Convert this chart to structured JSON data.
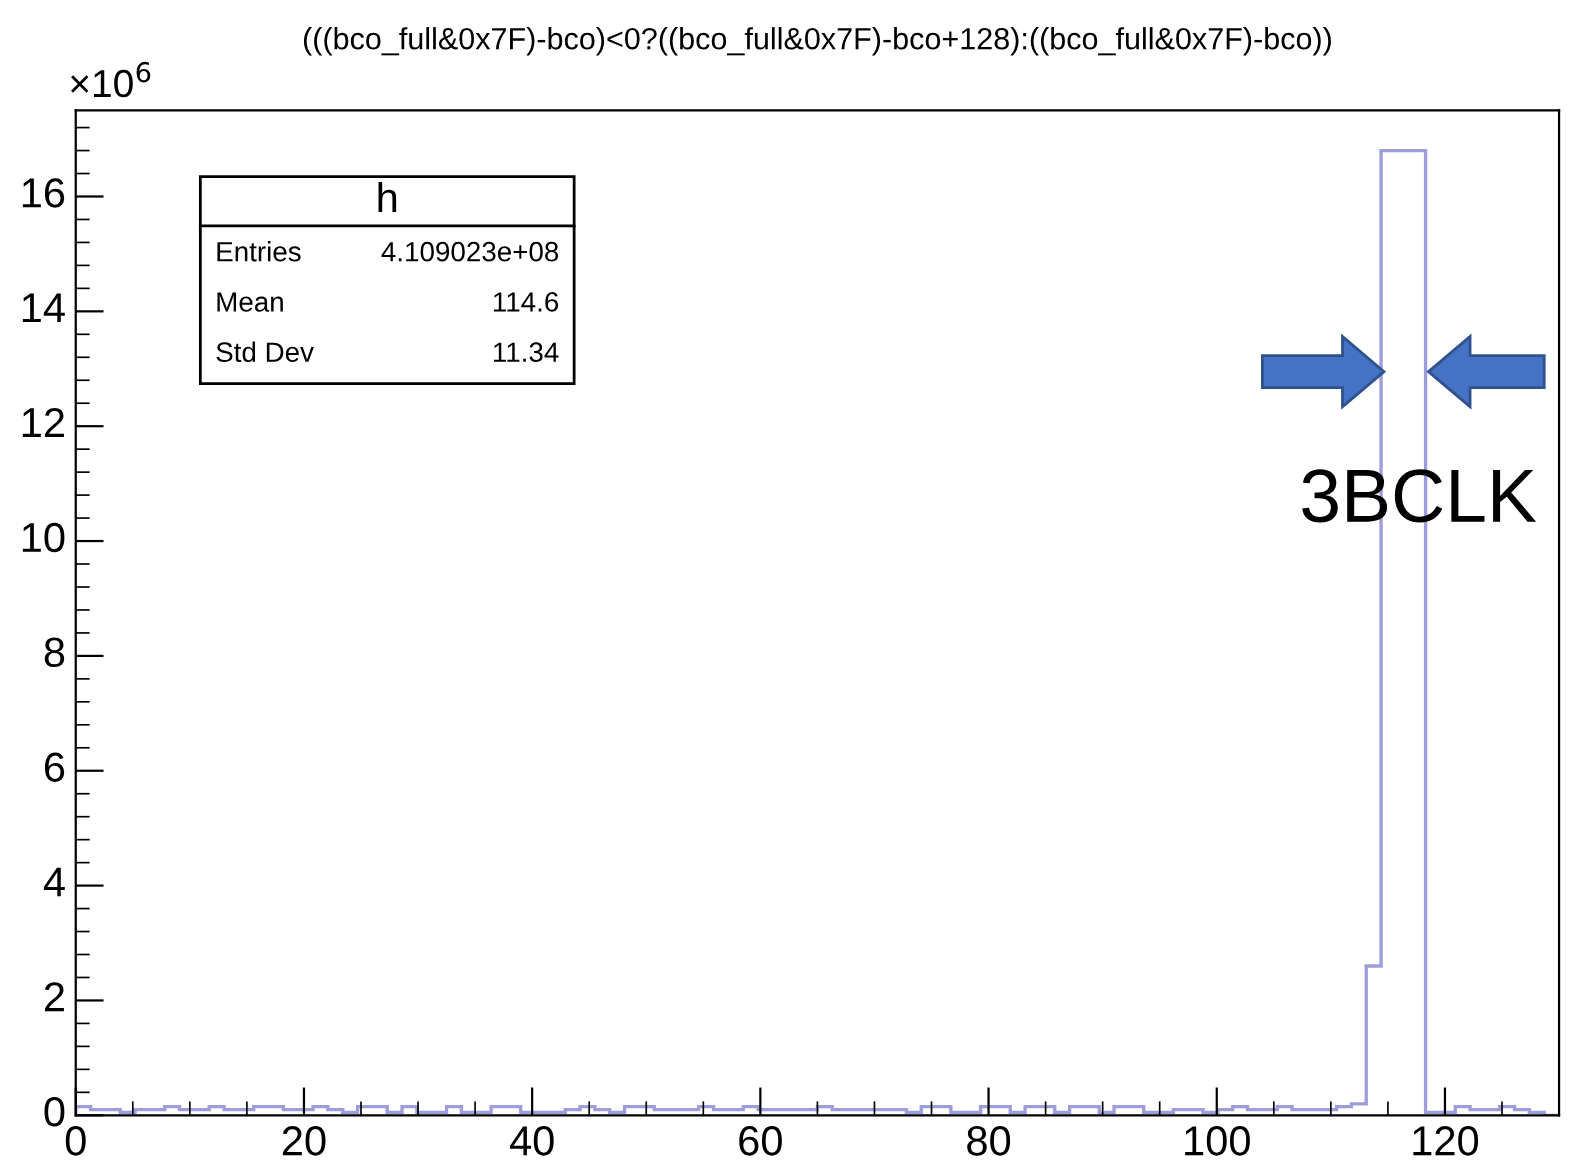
{
  "chart_data": {
    "type": "histogram",
    "title": "(((bco_full&0x7F)-bco)<0?((bco_full&0x7F)-bco+128):((bco_full&0x7F)-bco))",
    "bins": [
      0,
      1.3,
      2.6,
      3.9,
      5.2,
      6.5,
      7.8,
      9.1,
      10.4,
      11.7,
      13,
      14.3,
      15.6,
      16.9,
      18.2,
      19.5,
      20.8,
      22.1,
      23.4,
      24.7,
      26,
      27.3,
      28.6,
      29.9,
      31.2,
      32.5,
      33.8,
      35.1,
      36.4,
      37.7,
      39,
      40.3,
      41.6,
      42.9,
      44.2,
      45.5,
      46.8,
      48.1,
      49.4,
      50.7,
      52,
      53.3,
      54.6,
      55.9,
      57.2,
      58.5,
      59.8,
      61.1,
      62.4,
      63.7,
      65,
      66.3,
      67.6,
      68.9,
      70.2,
      71.5,
      72.8,
      74.1,
      75.4,
      76.7,
      78,
      79.3,
      80.6,
      81.9,
      83.2,
      84.5,
      85.8,
      87.1,
      88.4,
      89.7,
      91,
      92.3,
      93.6,
      94.9,
      96.2,
      97.5,
      98.8,
      100.1,
      101.4,
      102.7,
      104,
      105.3,
      106.6,
      107.9,
      109.2,
      110.5,
      111.8,
      113.1,
      114.4,
      115.7,
      117,
      118.3,
      119.6,
      120.9,
      122.2,
      123.5,
      124.8,
      126.1,
      127.4,
      128.7,
      130
    ],
    "values": [
      0.15,
      0.1,
      0.1,
      0.05,
      0.1,
      0.1,
      0.15,
      0.1,
      0.1,
      0.15,
      0.1,
      0.1,
      0.15,
      0.15,
      0.1,
      0.1,
      0.15,
      0.1,
      0.05,
      0.15,
      0.15,
      0.05,
      0.15,
      0.05,
      0.05,
      0.15,
      0.05,
      0.05,
      0.15,
      0.15,
      0.05,
      0.05,
      0.05,
      0.1,
      0.15,
      0.1,
      0.05,
      0.15,
      0.15,
      0.1,
      0.1,
      0.1,
      0.15,
      0.1,
      0.1,
      0.15,
      0.1,
      0.1,
      0.1,
      0.1,
      0.15,
      0.1,
      0.1,
      0.1,
      0.1,
      0.1,
      0.05,
      0.15,
      0.15,
      0.05,
      0.05,
      0.15,
      0.15,
      0.05,
      0.15,
      0.15,
      0.05,
      0.15,
      0.15,
      0.05,
      0.15,
      0.15,
      0.05,
      0.05,
      0.1,
      0.1,
      0.05,
      0.1,
      0.15,
      0.1,
      0.1,
      0.15,
      0.1,
      0.1,
      0.1,
      0.15,
      0.2,
      2.6,
      16.8,
      16.8,
      16.8,
      0.05,
      0.05,
      0.15,
      0.1,
      0.1,
      0.15,
      0.1,
      0.05,
      0
    ],
    "color": "#9d9ddb",
    "xlim": [
      0,
      130
    ],
    "xticks": [
      0,
      20,
      40,
      60,
      80,
      100,
      120
    ],
    "ylim": [
      0,
      17.5
    ],
    "yticks": [
      0,
      2,
      4,
      6,
      8,
      10,
      12,
      14,
      16
    ],
    "grid": false,
    "legend": false,
    "annotations": [
      "×10$^{6}$",
      "h",
      "Entries",
      "4.109023e+08",
      "Mean",
      "114.6",
      "Std Dev",
      "11.34",
      "3BCLK"
    ]
  }
}
